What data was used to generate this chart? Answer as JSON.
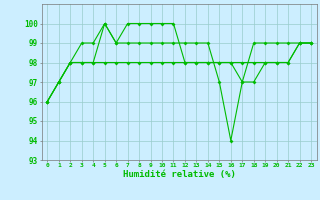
{
  "title": "",
  "xlabel": "Humidité relative (%)",
  "ylabel": "",
  "background_color": "#cceeff",
  "line_color": "#00bb00",
  "grid_color": "#99cccc",
  "ylim": [
    93,
    101
  ],
  "xlim": [
    -0.5,
    23.5
  ],
  "yticks": [
    93,
    94,
    95,
    96,
    97,
    98,
    99,
    100
  ],
  "xticks": [
    0,
    1,
    2,
    3,
    4,
    5,
    6,
    7,
    8,
    9,
    10,
    11,
    12,
    13,
    14,
    15,
    16,
    17,
    18,
    19,
    20,
    21,
    22,
    23
  ],
  "series": [
    [
      96,
      97,
      98,
      98,
      98,
      100,
      99,
      100,
      100,
      100,
      100,
      100,
      98,
      98,
      98,
      98,
      98,
      98,
      98,
      98,
      98,
      98,
      99,
      99
    ],
    [
      96,
      97,
      98,
      99,
      99,
      100,
      99,
      99,
      99,
      99,
      99,
      99,
      99,
      99,
      99,
      97,
      94,
      97,
      99,
      99,
      99,
      99,
      99,
      99
    ],
    [
      96,
      97,
      98,
      98,
      98,
      98,
      98,
      98,
      98,
      98,
      98,
      98,
      98,
      98,
      98,
      98,
      98,
      97,
      97,
      98,
      98,
      98,
      99,
      99
    ]
  ]
}
